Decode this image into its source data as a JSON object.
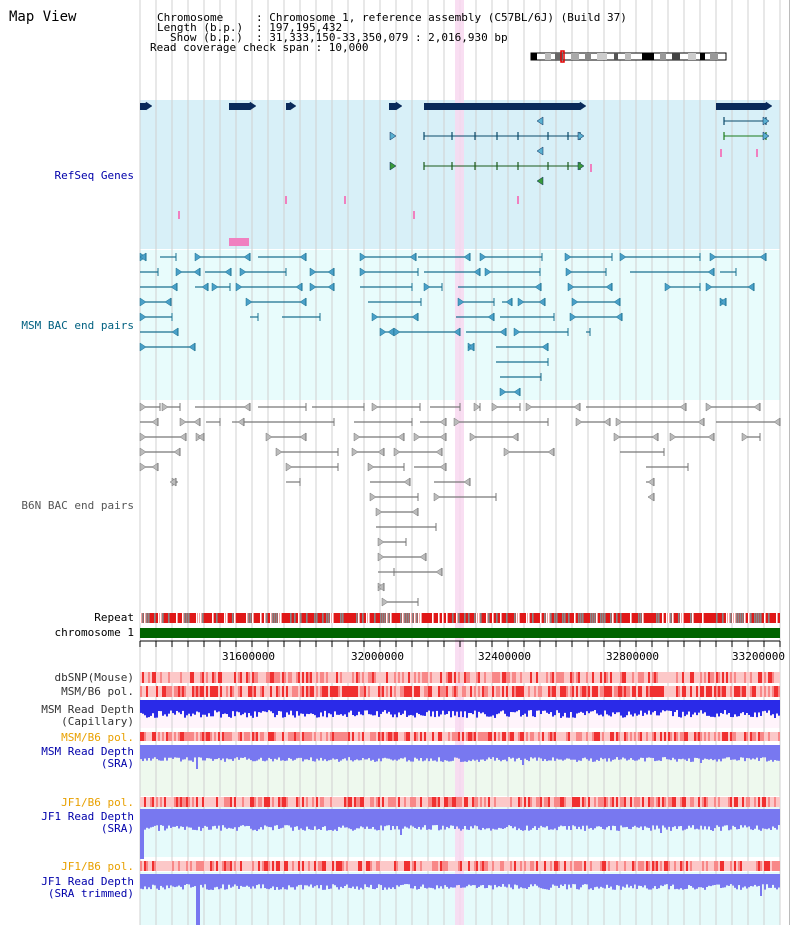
{
  "title": "Map View",
  "header": {
    "chromosome_key": "Chromosome",
    "chromosome_val": ": Chromosome 1, reference assembly (C57BL/6J) (Build 37)",
    "length_key": "Length (b.p.)",
    "length_val": ": 197,195,432",
    "show_key": "Show (b.p.)",
    "show_val": ": 31,333,150-33,350,079 : 2,016,930 bp",
    "coverage": "Read coverage check span : 10,000"
  },
  "tracks": {
    "refseq": "RefSeq Genes",
    "msm_bac": "MSM BAC end pairs",
    "b6n_bac": "B6N BAC end pairs",
    "repeat": "Repeat",
    "chromosome": "chromosome 1",
    "dbsnp": "dbSNP(Mouse)",
    "msm_b6_pol": "MSM/B6 pol.",
    "msm_depth_cap_1": "MSM Read Depth",
    "msm_depth_cap_2": "(Capillary)",
    "msm_b6_pol_2": "MSM/B6 pol.",
    "msm_depth_sra_1": "MSM Read Depth",
    "msm_depth_sra_2": "(SRA)",
    "jf1_pol": "JF1/B6 pol.",
    "jf1_depth_1": "JF1 Read Depth",
    "jf1_depth_2": "(SRA)",
    "jf1_pol_2": "JF1/B6 pol.",
    "jf1_trim_1": "JF1 Read Depth",
    "jf1_trim_2": "(SRA trimmed)"
  },
  "axis": {
    "ticks": [
      "31600000",
      "32000000",
      "32400000",
      "32800000",
      "33200000"
    ]
  },
  "colors": {
    "refseq_bg": "#d8f0f8",
    "msm_bg": "#e8fcfc",
    "b6n_bg": "#ffffff",
    "gene_dark": "#0a2a5a",
    "msm_line": "#1a7090",
    "b6n_line": "#777777",
    "chromosome_bar": "#006400",
    "depth_blue": "#2a2ae8",
    "depth_light": "#7878f0",
    "label_blue": "#0000aa",
    "label_orange": "#e8a000",
    "label_teal": "#006080",
    "highlight": "#f8d8f0"
  }
}
